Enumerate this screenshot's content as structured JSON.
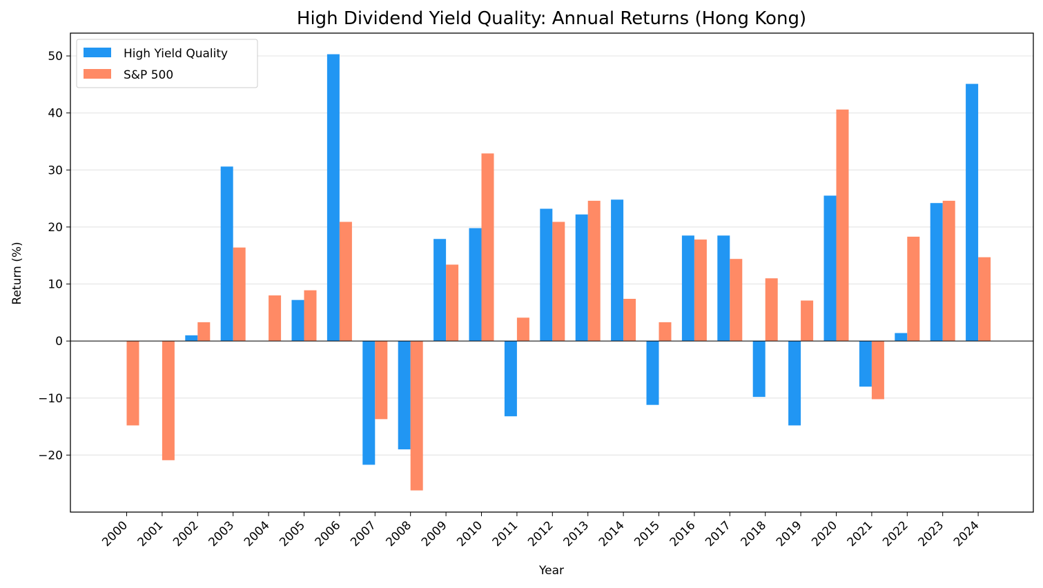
{
  "chart_data": {
    "type": "bar",
    "title": "High Dividend Yield Quality: Annual Returns (Hong Kong)",
    "xlabel": "Year",
    "ylabel": "Return (%)",
    "ylim": [
      -30,
      54
    ],
    "yticks": [
      -20,
      -10,
      0,
      10,
      20,
      30,
      40,
      50
    ],
    "ytick_labels": [
      "−20",
      "−10",
      "0",
      "10",
      "20",
      "30",
      "40",
      "50"
    ],
    "grid": "horizontal",
    "legend_position": "top-left",
    "categories": [
      "2000",
      "2001",
      "2002",
      "2003",
      "2004",
      "2005",
      "2006",
      "2007",
      "2008",
      "2009",
      "2010",
      "2011",
      "2012",
      "2013",
      "2014",
      "2015",
      "2016",
      "2017",
      "2018",
      "2019",
      "2020",
      "2021",
      "2022",
      "2023",
      "2024"
    ],
    "series": [
      {
        "name": "High Yield Quality",
        "color": "#2196F3",
        "values": [
          0,
          0,
          1.0,
          30.6,
          0,
          7.2,
          50.3,
          -21.7,
          -19.0,
          17.9,
          19.8,
          -13.2,
          23.2,
          22.2,
          24.8,
          -11.2,
          18.5,
          18.5,
          -9.8,
          -14.8,
          25.5,
          -8.0,
          1.4,
          24.2,
          45.1
        ]
      },
      {
        "name": "S&P 500",
        "color": "#FF8A65",
        "values": [
          -14.8,
          -20.9,
          3.3,
          16.4,
          8.0,
          8.9,
          20.9,
          -13.7,
          -26.2,
          13.4,
          32.9,
          4.1,
          20.9,
          24.6,
          7.4,
          3.3,
          17.8,
          14.4,
          11.0,
          7.1,
          40.6,
          -10.2,
          18.3,
          24.6,
          14.7
        ]
      }
    ]
  }
}
